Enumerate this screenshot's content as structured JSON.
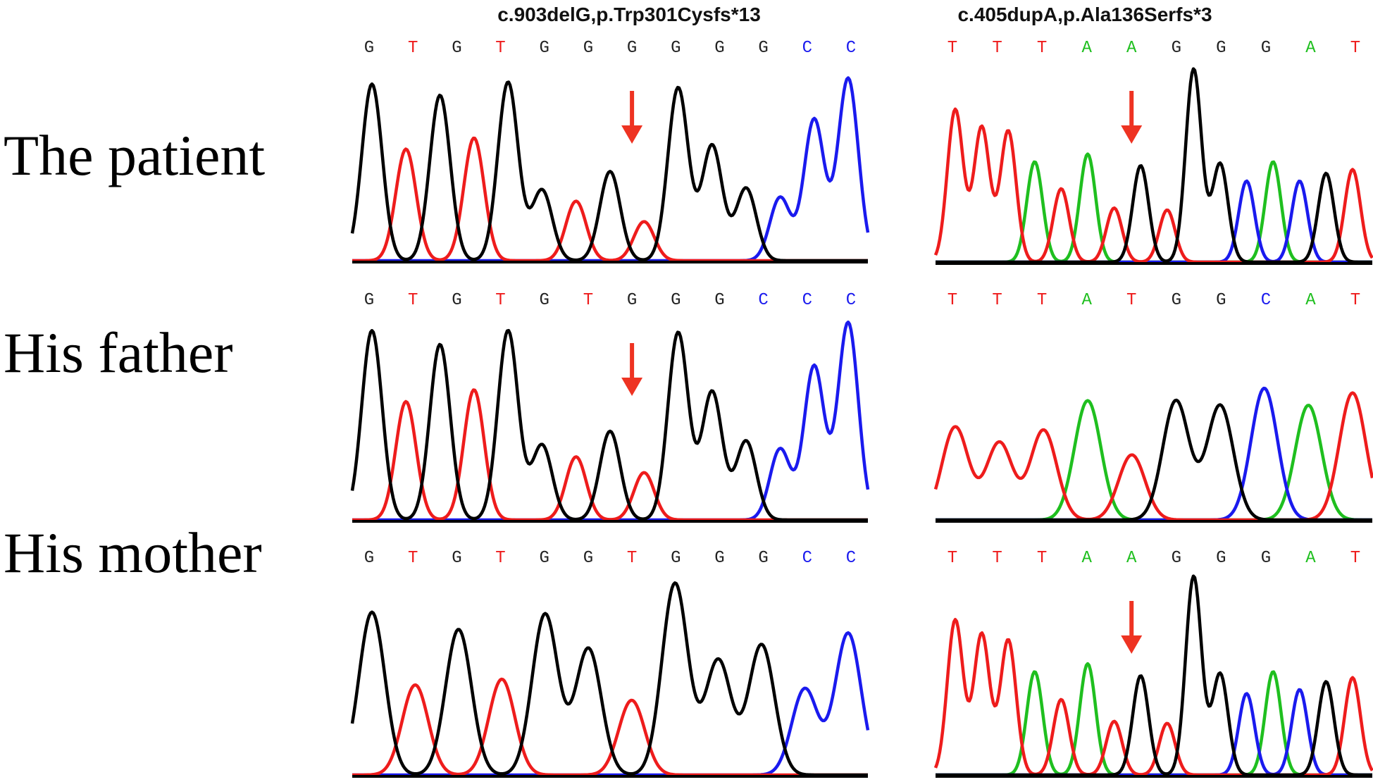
{
  "colors": {
    "A": "#1fbf1f",
    "T": "#ee1c1c",
    "G": "#000000",
    "C": "#1a1aee",
    "arrow": "#ee3322",
    "baseline": "#000000"
  },
  "columns": [
    {
      "title": "c.903delG,p.Trp301Cysfs*13"
    },
    {
      "title": "c.405dupA,p.Ala136Serfs*3"
    }
  ],
  "rows": [
    {
      "label": "The patient"
    },
    {
      "label": "His father"
    },
    {
      "label": "His mother"
    }
  ],
  "panels": [
    {
      "sequence": [
        "G",
        "T",
        "G",
        "T",
        "G",
        "G",
        "G",
        "G",
        "G",
        "G",
        "C",
        "C"
      ],
      "arrow_at": 6,
      "peaks": [
        {
          "b": "G",
          "h": 0.95
        },
        {
          "b": "T",
          "h": 0.6
        },
        {
          "b": "G",
          "h": 0.89
        },
        {
          "b": "T",
          "h": 0.66
        },
        {
          "b": "G",
          "h": 0.96
        },
        {
          "b": "G",
          "h": 0.38
        },
        {
          "b": "T",
          "h": 0.32
        },
        {
          "b": "G",
          "h": 0.48
        },
        {
          "b": "T",
          "h": 0.21
        },
        {
          "b": "G",
          "h": 0.93
        },
        {
          "b": "G",
          "h": 0.62
        },
        {
          "b": "G",
          "h": 0.39
        },
        {
          "b": "C",
          "h": 0.34
        },
        {
          "b": "C",
          "h": 0.76
        },
        {
          "b": "C",
          "h": 0.98
        }
      ]
    },
    {
      "sequence": [
        "T",
        "T",
        "T",
        "A",
        "A",
        "G",
        "G",
        "G",
        "A",
        "T"
      ],
      "arrow_at": 4,
      "peaks": [
        {
          "b": "T",
          "h": 0.79
        },
        {
          "b": "T",
          "h": 0.7
        },
        {
          "b": "T",
          "h": 0.68
        },
        {
          "b": "A",
          "h": 0.52
        },
        {
          "b": "T",
          "h": 0.38
        },
        {
          "b": "A",
          "h": 0.56
        },
        {
          "b": "T",
          "h": 0.28
        },
        {
          "b": "G",
          "h": 0.5
        },
        {
          "b": "T",
          "h": 0.27
        },
        {
          "b": "G",
          "h": 1.0
        },
        {
          "b": "G",
          "h": 0.51
        },
        {
          "b": "C",
          "h": 0.42
        },
        {
          "b": "A",
          "h": 0.52
        },
        {
          "b": "C",
          "h": 0.42
        },
        {
          "b": "G",
          "h": 0.46
        },
        {
          "b": "T",
          "h": 0.48
        }
      ]
    },
    {
      "sequence": [
        "G",
        "T",
        "G",
        "T",
        "G",
        "T",
        "G",
        "G",
        "G",
        "C",
        "C",
        "C"
      ],
      "arrow_at": 6,
      "peaks": [
        {
          "b": "G",
          "h": 0.96
        },
        {
          "b": "T",
          "h": 0.6
        },
        {
          "b": "G",
          "h": 0.89
        },
        {
          "b": "T",
          "h": 0.66
        },
        {
          "b": "G",
          "h": 0.96
        },
        {
          "b": "G",
          "h": 0.38
        },
        {
          "b": "T",
          "h": 0.32
        },
        {
          "b": "G",
          "h": 0.45
        },
        {
          "b": "T",
          "h": 0.24
        },
        {
          "b": "G",
          "h": 0.95
        },
        {
          "b": "G",
          "h": 0.65
        },
        {
          "b": "G",
          "h": 0.4
        },
        {
          "b": "C",
          "h": 0.36
        },
        {
          "b": "C",
          "h": 0.78
        },
        {
          "b": "C",
          "h": 1.0
        }
      ]
    },
    {
      "sequence": [
        "T",
        "T",
        "T",
        "A",
        "T",
        "G",
        "G",
        "C",
        "A",
        "T"
      ],
      "arrow_at": null,
      "peaks": [
        {
          "b": "T",
          "h": 0.6
        },
        {
          "b": "T",
          "h": 0.5
        },
        {
          "b": "T",
          "h": 0.58
        },
        {
          "b": "A",
          "h": 0.77
        },
        {
          "b": "T",
          "h": 0.42
        },
        {
          "b": "G",
          "h": 0.77
        },
        {
          "b": "G",
          "h": 0.74
        },
        {
          "b": "C",
          "h": 0.85
        },
        {
          "b": "A",
          "h": 0.74
        },
        {
          "b": "T",
          "h": 0.82
        }
      ]
    },
    {
      "sequence": [
        "G",
        "T",
        "G",
        "T",
        "G",
        "G",
        "T",
        "G",
        "G",
        "G",
        "C",
        "C"
      ],
      "arrow_at": null,
      "peaks": [
        {
          "b": "G",
          "h": 0.85
        },
        {
          "b": "T",
          "h": 0.47
        },
        {
          "b": "G",
          "h": 0.76
        },
        {
          "b": "T",
          "h": 0.5
        },
        {
          "b": "G",
          "h": 0.84
        },
        {
          "b": "G",
          "h": 0.66
        },
        {
          "b": "T",
          "h": 0.39
        },
        {
          "b": "G",
          "h": 1.0
        },
        {
          "b": "G",
          "h": 0.6
        },
        {
          "b": "G",
          "h": 0.68
        },
        {
          "b": "C",
          "h": 0.45
        },
        {
          "b": "C",
          "h": 0.74
        }
      ]
    },
    {
      "sequence": [
        "T",
        "T",
        "T",
        "A",
        "A",
        "G",
        "G",
        "G",
        "A",
        "T"
      ],
      "arrow_at": 4,
      "peaks": [
        {
          "b": "T",
          "h": 0.78
        },
        {
          "b": "T",
          "h": 0.71
        },
        {
          "b": "T",
          "h": 0.68
        },
        {
          "b": "A",
          "h": 0.52
        },
        {
          "b": "T",
          "h": 0.38
        },
        {
          "b": "A",
          "h": 0.56
        },
        {
          "b": "T",
          "h": 0.27
        },
        {
          "b": "G",
          "h": 0.5
        },
        {
          "b": "T",
          "h": 0.26
        },
        {
          "b": "G",
          "h": 1.0
        },
        {
          "b": "G",
          "h": 0.51
        },
        {
          "b": "C",
          "h": 0.41
        },
        {
          "b": "A",
          "h": 0.52
        },
        {
          "b": "C",
          "h": 0.43
        },
        {
          "b": "G",
          "h": 0.47
        },
        {
          "b": "T",
          "h": 0.49
        }
      ]
    }
  ]
}
